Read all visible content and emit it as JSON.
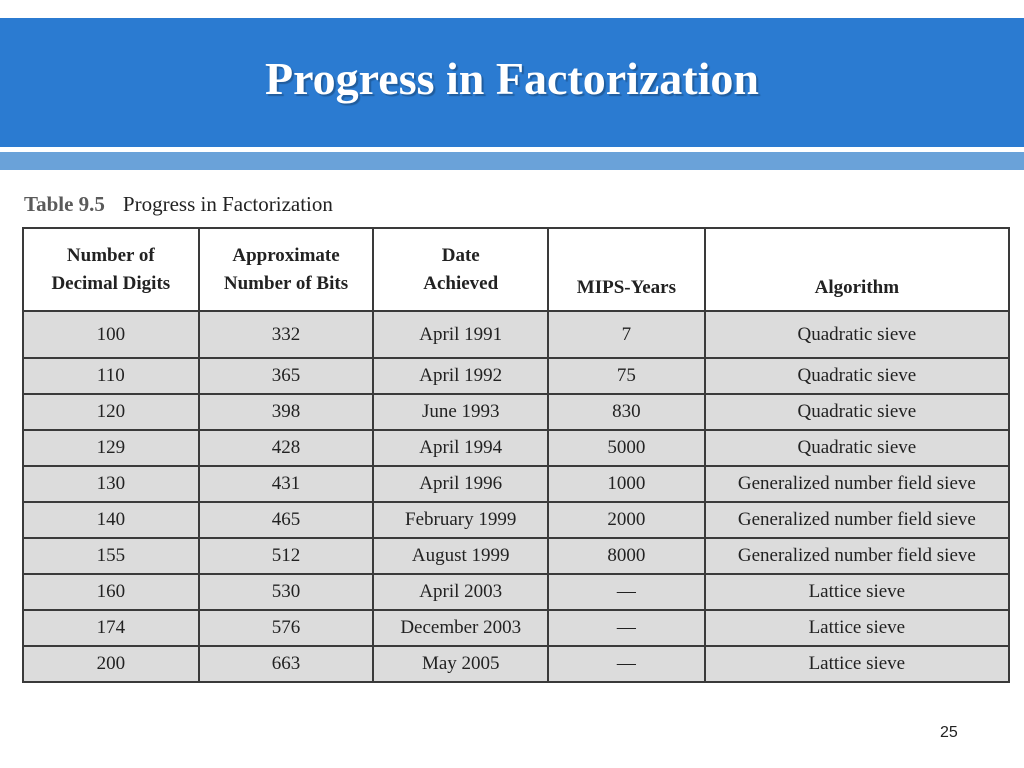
{
  "slide": {
    "title": "Progress in Factorization",
    "page_number": "25"
  },
  "caption": {
    "table_number": "Table 9.5",
    "title": "Progress in Factorization"
  },
  "table": {
    "headers": [
      [
        "Number of",
        "Decimal Digits"
      ],
      [
        "Approximate",
        "Number of Bits"
      ],
      [
        "Date",
        "Achieved"
      ],
      [
        "MIPS-Years"
      ],
      [
        "Algorithm"
      ]
    ],
    "rows": [
      [
        "100",
        "332",
        "April 1991",
        "7",
        "Quadratic sieve"
      ],
      [
        "110",
        "365",
        "April 1992",
        "75",
        "Quadratic sieve"
      ],
      [
        "120",
        "398",
        "June 1993",
        "830",
        "Quadratic sieve"
      ],
      [
        "129",
        "428",
        "April 1994",
        "5000",
        "Quadratic sieve"
      ],
      [
        "130",
        "431",
        "April 1996",
        "1000",
        "Generalized number field sieve"
      ],
      [
        "140",
        "465",
        "February 1999",
        "2000",
        "Generalized number field sieve"
      ],
      [
        "155",
        "512",
        "August 1999",
        "8000",
        "Generalized number field sieve"
      ],
      [
        "160",
        "530",
        "April 2003",
        "—",
        "Lattice sieve"
      ],
      [
        "174",
        "576",
        "December 2003",
        "—",
        "Lattice sieve"
      ],
      [
        "200",
        "663",
        "May 2005",
        "—",
        "Lattice sieve"
      ]
    ]
  },
  "colors": {
    "title_bar": "#2b7bd1",
    "stripe": "#6aa2d9",
    "cell_background": "#dcdcdc"
  }
}
